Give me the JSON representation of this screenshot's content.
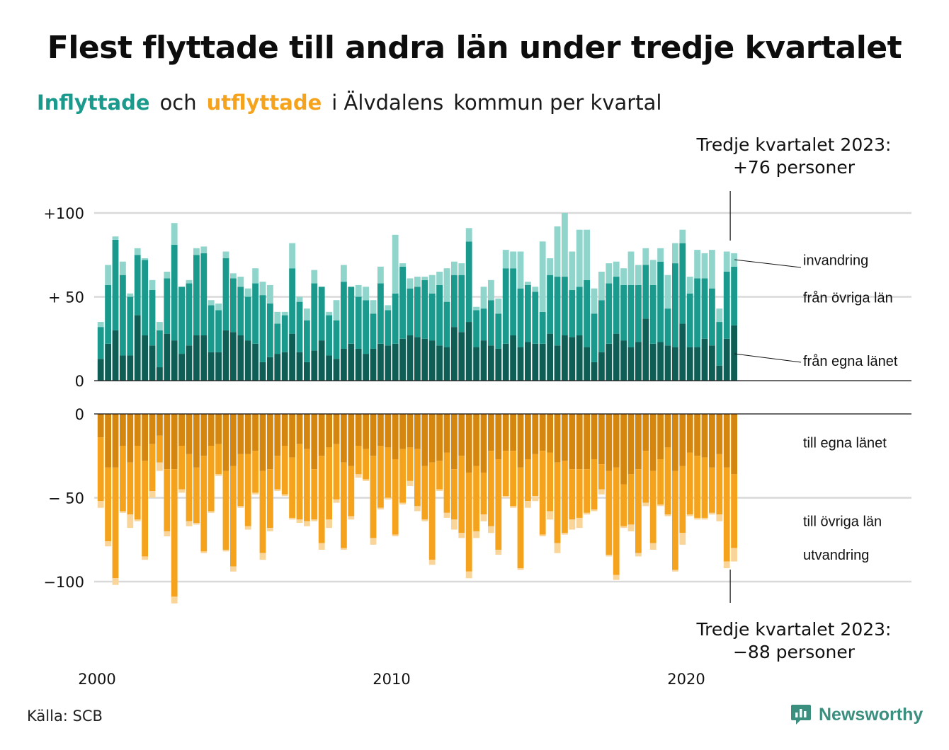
{
  "title": "Flest flyttade till andra län under tredje kvartalet",
  "subtitle": {
    "part1": "Inflyttade",
    "part2": "och",
    "part3": "utflyttade",
    "part4": "i Älvdalens",
    "part5": "kommun per kvartal"
  },
  "annotation_top": {
    "line1": "Tredje kvartalet 2023:",
    "line2": "+76 personer"
  },
  "annotation_bottom": {
    "line1": "Tredje kvartalet 2023:",
    "line2": "−88 personer"
  },
  "source": "Källa: SCB",
  "logo_text": "Newsworthy",
  "colors": {
    "in_local": "#0f5e55",
    "in_county": "#1a9a8c",
    "in_immig": "#8fd5cc",
    "out_local": "#d4860f",
    "out_county": "#f5a21c",
    "out_emig": "#fad59a",
    "grid": "#d9d9d9"
  },
  "chart_data": {
    "type": "bar",
    "x_label": "",
    "y_ticks_top": [
      {
        "value": 100,
        "label": "+100"
      },
      {
        "value": 50,
        "label": "+ 50"
      },
      {
        "value": 0,
        "label": "0"
      }
    ],
    "y_ticks_bottom": [
      {
        "value": 0,
        "label": "0"
      },
      {
        "value": -50,
        "label": "− 50"
      },
      {
        "value": -100,
        "label": "−100"
      }
    ],
    "x_ticks": [
      {
        "year": 2000,
        "label": "2000"
      },
      {
        "year": 2010,
        "label": "2010"
      },
      {
        "year": 2020,
        "label": "2020"
      }
    ],
    "ylim_in": [
      0,
      100
    ],
    "ylim_out": [
      -100,
      0
    ],
    "categories_first": "2000 Q1",
    "categories_last": "2023 Q3",
    "series_in": [
      {
        "name": "från egna länet",
        "values": [
          13,
          22,
          30,
          15,
          15,
          39,
          27,
          21,
          8,
          28,
          24,
          16,
          21,
          27,
          27,
          17,
          17,
          30,
          29,
          27,
          24,
          22,
          11,
          14,
          16,
          17,
          28,
          17,
          11,
          18,
          24,
          15,
          13,
          19,
          22,
          19,
          16,
          19,
          22,
          21,
          22,
          25,
          27,
          26,
          25,
          24,
          21,
          20,
          32,
          29,
          35,
          20,
          24,
          21,
          19,
          22,
          27,
          20,
          23,
          22,
          22,
          28,
          21,
          27,
          26,
          27,
          20,
          11,
          17,
          22,
          28,
          24,
          20,
          23,
          37,
          22,
          23,
          21,
          20,
          34,
          20,
          20,
          25,
          21,
          9,
          25,
          33
        ]
      },
      {
        "name": "från övriga län",
        "values": [
          19,
          35,
          54,
          48,
          35,
          36,
          45,
          33,
          22,
          33,
          57,
          40,
          37,
          48,
          49,
          28,
          25,
          43,
          32,
          29,
          26,
          36,
          40,
          32,
          18,
          22,
          39,
          30,
          25,
          40,
          32,
          24,
          23,
          40,
          34,
          31,
          32,
          21,
          36,
          21,
          30,
          43,
          28,
          30,
          35,
          28,
          36,
          27,
          31,
          34,
          48,
          22,
          19,
          27,
          21,
          45,
          40,
          35,
          34,
          31,
          19,
          35,
          41,
          35,
          28,
          29,
          40,
          29,
          31,
          36,
          34,
          33,
          37,
          34,
          32,
          35,
          48,
          22,
          50,
          48,
          32,
          41,
          36,
          34,
          26,
          40,
          35
        ]
      },
      {
        "name": "invandring",
        "values": [
          3,
          12,
          2,
          8,
          2,
          4,
          1,
          6,
          5,
          4,
          13,
          0,
          2,
          4,
          4,
          3,
          4,
          4,
          3,
          6,
          5,
          9,
          8,
          11,
          7,
          2,
          15,
          3,
          7,
          8,
          0,
          2,
          12,
          10,
          0,
          7,
          8,
          8,
          10,
          3,
          35,
          2,
          6,
          6,
          2,
          11,
          8,
          20,
          8,
          7,
          8,
          2,
          13,
          12,
          9,
          11,
          10,
          22,
          2,
          3,
          42,
          10,
          30,
          38,
          23,
          34,
          30,
          15,
          17,
          12,
          9,
          10,
          20,
          12,
          10,
          15,
          8,
          20,
          12,
          8,
          10,
          17,
          15,
          23,
          8,
          12,
          8
        ]
      }
    ],
    "series_out": [
      {
        "name": "till egna länet",
        "values": [
          -14,
          -32,
          -32,
          -19,
          -29,
          -19,
          -28,
          -18,
          -13,
          -33,
          -33,
          -19,
          -24,
          -32,
          -25,
          -19,
          -18,
          -34,
          -31,
          -24,
          -24,
          -22,
          -34,
          -33,
          -25,
          -19,
          -26,
          -18,
          -21,
          -33,
          -25,
          -20,
          -18,
          -29,
          -31,
          -19,
          -21,
          -25,
          -19,
          -20,
          -27,
          -21,
          -20,
          -21,
          -31,
          -29,
          -28,
          -23,
          -33,
          -25,
          -35,
          -31,
          -35,
          -22,
          -27,
          -22,
          -22,
          -32,
          -27,
          -24,
          -22,
          -23,
          -29,
          -28,
          -33,
          -33,
          -33,
          -27,
          -30,
          -34,
          -32,
          -42,
          -36,
          -33,
          -22,
          -34,
          -27,
          -20,
          -34,
          -31,
          -23,
          -25,
          -26,
          -32,
          -24,
          -32,
          -36
        ]
      },
      {
        "name": "till övriga län",
        "values": [
          -38,
          -44,
          -66,
          -39,
          -31,
          -44,
          -57,
          -28,
          -16,
          -37,
          -76,
          -26,
          -40,
          -33,
          -57,
          -39,
          -18,
          -47,
          -60,
          -31,
          -43,
          -25,
          -49,
          -35,
          -20,
          -29,
          -36,
          -45,
          -43,
          -30,
          -52,
          -43,
          -33,
          -51,
          -30,
          -17,
          -18,
          -49,
          -37,
          -30,
          -45,
          -32,
          -20,
          -34,
          -32,
          -58,
          -17,
          -36,
          -30,
          -46,
          -59,
          -39,
          -25,
          -45,
          -54,
          -27,
          -33,
          -60,
          -25,
          -25,
          -50,
          -35,
          -48,
          -43,
          -30,
          -29,
          -26,
          -30,
          -15,
          -50,
          -64,
          -25,
          -30,
          -50,
          -31,
          -43,
          -27,
          -40,
          -59,
          -40,
          -37,
          -37,
          -36,
          -27,
          -36,
          -56,
          -44
        ]
      },
      {
        "name": "utvandring",
        "values": [
          -4,
          -3,
          -4,
          -1,
          -8,
          -1,
          -2,
          -4,
          -5,
          -3,
          -4,
          -2,
          -3,
          -1,
          -1,
          -1,
          -1,
          -1,
          -3,
          -1,
          -2,
          -1,
          -4,
          -2,
          -1,
          -1,
          -1,
          -2,
          -3,
          -1,
          -4,
          -5,
          -2,
          -1,
          -2,
          -2,
          -1,
          -4,
          -1,
          -1,
          -1,
          -1,
          -3,
          -3,
          -1,
          -3,
          -1,
          -3,
          -6,
          -3,
          -4,
          -4,
          -4,
          -4,
          -3,
          -1,
          -1,
          -1,
          -4,
          -3,
          -1,
          -5,
          -6,
          -1,
          -6,
          -6,
          -1,
          -1,
          -3,
          -1,
          -3,
          -1,
          -4,
          -2,
          -2,
          -4,
          -1,
          -1,
          -1,
          -7,
          -1,
          -1,
          -1,
          -1,
          -4,
          -4,
          -8
        ]
      }
    ]
  }
}
